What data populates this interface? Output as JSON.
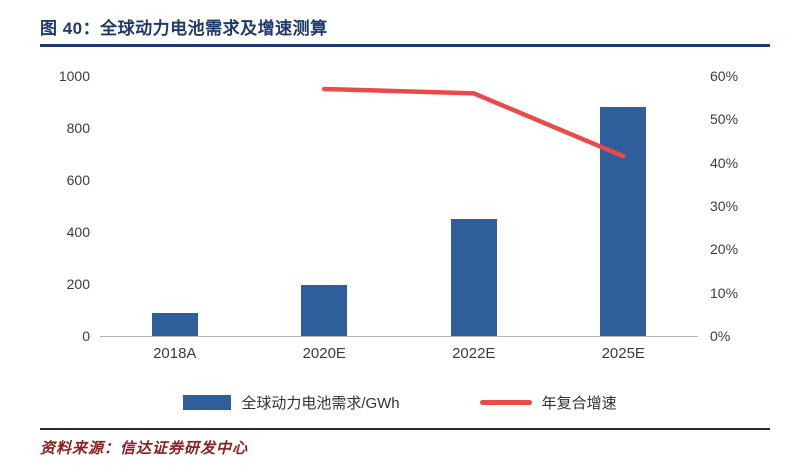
{
  "figure": {
    "label": "图 40：",
    "title": "全球动力电池需求及增速测算",
    "source_label": "资料来源：",
    "source": "信达证券研发中心"
  },
  "colors": {
    "bar": "#2e5f9b",
    "line": "#ea4a4a",
    "title_navy": "#1e3a6b",
    "source_red": "#8b1f1b"
  },
  "chart_data": {
    "type": "bar",
    "subtype": "bar+line combo, dual axis",
    "categories": [
      "2018A",
      "2020E",
      "2022E",
      "2025E"
    ],
    "series": [
      {
        "name": "全球动力电池需求/GWh",
        "type": "bar",
        "axis": "left",
        "color": "#2e5f9b",
        "values": [
          90,
          195,
          450,
          880
        ]
      },
      {
        "name": "年复合增速",
        "type": "line",
        "axis": "right",
        "color": "#ea4a4a",
        "values": [
          null,
          57,
          56,
          41.5
        ]
      }
    ],
    "left_axis": {
      "min": 0,
      "max": 1000,
      "ticks": [
        0,
        200,
        400,
        600,
        800,
        1000
      ]
    },
    "right_axis": {
      "min": 0,
      "max": 60,
      "ticks": [
        "0%",
        "10%",
        "20%",
        "30%",
        "40%",
        "50%",
        "60%"
      ]
    },
    "grid": false,
    "legend_position": "bottom"
  }
}
